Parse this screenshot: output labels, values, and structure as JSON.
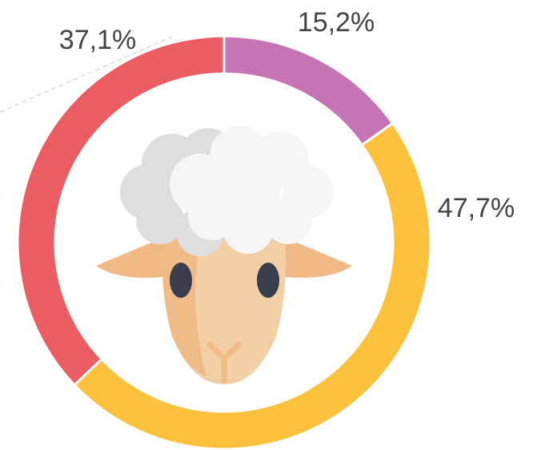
{
  "chart_data": {
    "type": "donut",
    "values": [
      15.2,
      47.7,
      37.1
    ],
    "value_labels": [
      "15,2%",
      "47,7%",
      "37,1%"
    ],
    "colors": [
      "#c774b4",
      "#fec13d",
      "#ea5e63"
    ]
  }
}
